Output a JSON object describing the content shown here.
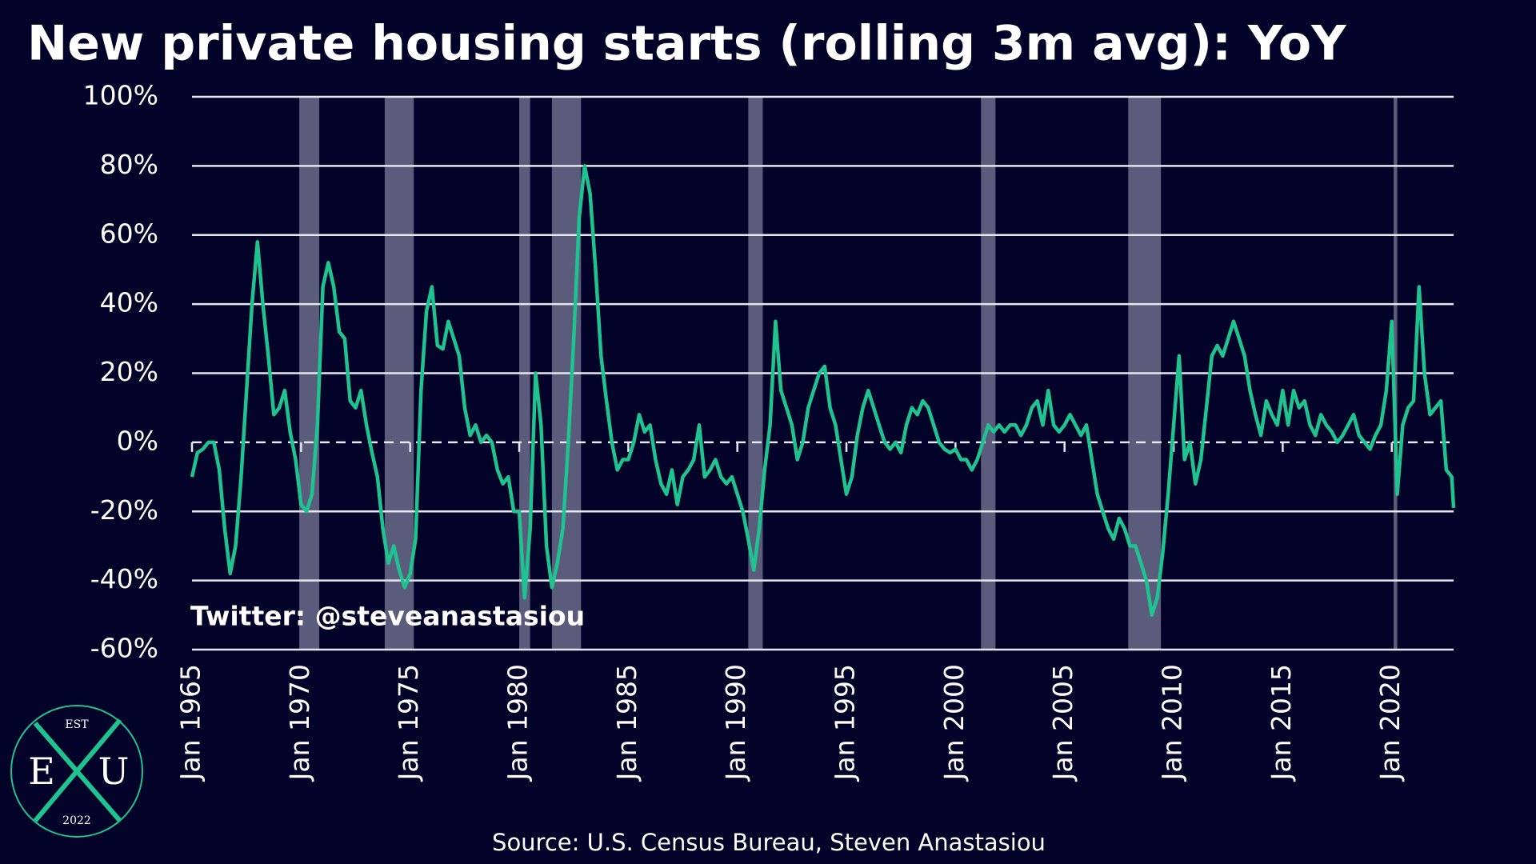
{
  "chart_data": {
    "type": "line",
    "title": "New private housing starts (rolling 3m avg): YoY",
    "source": "Source: U.S. Census Bureau, Steven Anastasiou",
    "annotation": "Twitter: @steveanastasiou",
    "logo": {
      "top": "EST",
      "left": "E",
      "right": "U",
      "bottom": "2022"
    },
    "x": [
      "Jan 1965",
      "Apr 1965",
      "Jul 1965",
      "Oct 1965",
      "Jan 1966",
      "Apr 1966",
      "Jul 1966",
      "Oct 1966",
      "Jan 1967",
      "Apr 1967",
      "Jul 1967",
      "Oct 1967",
      "Jan 1968",
      "Apr 1968",
      "Jul 1968",
      "Oct 1968",
      "Jan 1969",
      "Apr 1969",
      "Jul 1969",
      "Oct 1969",
      "Jan 1970",
      "Apr 1970",
      "Jul 1970",
      "Oct 1970",
      "Jan 1971",
      "Apr 1971",
      "Jul 1971",
      "Oct 1971",
      "Jan 1972",
      "Apr 1972",
      "Jul 1972",
      "Oct 1972",
      "Jan 1973",
      "Apr 1973",
      "Jul 1973",
      "Oct 1973",
      "Jan 1974",
      "Apr 1974",
      "Jul 1974",
      "Oct 1974",
      "Jan 1975",
      "Apr 1975",
      "Jul 1975",
      "Oct 1975",
      "Jan 1976",
      "Apr 1976",
      "Jul 1976",
      "Oct 1976",
      "Jan 1977",
      "Apr 1977",
      "Jul 1977",
      "Oct 1977",
      "Jan 1978",
      "Apr 1978",
      "Jul 1978",
      "Oct 1978",
      "Jan 1979",
      "Apr 1979",
      "Jul 1979",
      "Oct 1979",
      "Jan 1980",
      "Apr 1980",
      "Jul 1980",
      "Oct 1980",
      "Jan 1981",
      "Apr 1981",
      "Jul 1981",
      "Oct 1981",
      "Jan 1982",
      "Apr 1982",
      "Jul 1982",
      "Oct 1982",
      "Jan 1983",
      "Apr 1983",
      "Jul 1983",
      "Oct 1983",
      "Jan 1984",
      "Apr 1984",
      "Jul 1984",
      "Oct 1984",
      "Jan 1985",
      "Apr 1985",
      "Jul 1985",
      "Oct 1985",
      "Jan 1986",
      "Apr 1986",
      "Jul 1986",
      "Oct 1986",
      "Jan 1987",
      "Apr 1987",
      "Jul 1987",
      "Oct 1987",
      "Jan 1988",
      "Apr 1988",
      "Jul 1988",
      "Oct 1988",
      "Jan 1989",
      "Apr 1989",
      "Jul 1989",
      "Oct 1989",
      "Jan 1990",
      "Apr 1990",
      "Jul 1990",
      "Oct 1990",
      "Jan 1991",
      "Apr 1991",
      "Jul 1991",
      "Oct 1991",
      "Jan 1992",
      "Apr 1992",
      "Jul 1992",
      "Oct 1992",
      "Jan 1993",
      "Apr 1993",
      "Jul 1993",
      "Oct 1993",
      "Jan 1994",
      "Apr 1994",
      "Jul 1994",
      "Oct 1994",
      "Jan 1995",
      "Apr 1995",
      "Jul 1995",
      "Oct 1995",
      "Jan 1996",
      "Apr 1996",
      "Jul 1996",
      "Oct 1996",
      "Jan 1997",
      "Apr 1997",
      "Jul 1997",
      "Oct 1997",
      "Jan 1998",
      "Apr 1998",
      "Jul 1998",
      "Oct 1998",
      "Jan 1999",
      "Apr 1999",
      "Jul 1999",
      "Oct 1999",
      "Jan 2000",
      "Apr 2000",
      "Jul 2000",
      "Oct 2000",
      "Jan 2001",
      "Apr 2001",
      "Jul 2001",
      "Oct 2001",
      "Jan 2002",
      "Apr 2002",
      "Jul 2002",
      "Oct 2002",
      "Jan 2003",
      "Apr 2003",
      "Jul 2003",
      "Oct 2003",
      "Jan 2004",
      "Apr 2004",
      "Jul 2004",
      "Oct 2004",
      "Jan 2005",
      "Apr 2005",
      "Jul 2005",
      "Oct 2005",
      "Jan 2006",
      "Apr 2006",
      "Jul 2006",
      "Oct 2006",
      "Jan 2007",
      "Apr 2007",
      "Jul 2007",
      "Oct 2007",
      "Jan 2008",
      "Apr 2008",
      "Jul 2008",
      "Oct 2008",
      "Jan 2009",
      "Apr 2009",
      "Jul 2009",
      "Oct 2009",
      "Jan 2010",
      "Apr 2010",
      "Jul 2010",
      "Oct 2010",
      "Jan 2011",
      "Apr 2011",
      "Jul 2011",
      "Oct 2011",
      "Jan 2012",
      "Apr 2012",
      "Jul 2012",
      "Oct 2012",
      "Jan 2013",
      "Apr 2013",
      "Jul 2013",
      "Oct 2013",
      "Jan 2014",
      "Apr 2014",
      "Jul 2014",
      "Oct 2014",
      "Jan 2015",
      "Apr 2015",
      "Jul 2015",
      "Oct 2015",
      "Jan 2016",
      "Apr 2016",
      "Jul 2016",
      "Oct 2016",
      "Jan 2017",
      "Apr 2017",
      "Jul 2017",
      "Oct 2017",
      "Jan 2018",
      "Apr 2018",
      "Jul 2018",
      "Oct 2018",
      "Jan 2019",
      "Apr 2019",
      "Jul 2019",
      "Oct 2019",
      "Jan 2020",
      "Apr 2020",
      "Jul 2020",
      "Oct 2020",
      "Jan 2021",
      "Apr 2021",
      "Jul 2021",
      "Oct 2021",
      "Jan 2022",
      "Apr 2022",
      "Jul 2022",
      "Oct 2022",
      "Nov 2022"
    ],
    "series": [
      {
        "color": "#1fc38f",
        "values": [
          -10,
          -3,
          -2,
          0,
          0,
          -8,
          -25,
          -38,
          -30,
          -10,
          15,
          40,
          58,
          40,
          25,
          8,
          10,
          15,
          3,
          -5,
          -18,
          -20,
          -15,
          5,
          45,
          52,
          45,
          32,
          30,
          12,
          10,
          15,
          5,
          -3,
          -10,
          -25,
          -35,
          -30,
          -37,
          -42,
          -38,
          -28,
          15,
          38,
          45,
          28,
          27,
          35,
          30,
          25,
          10,
          2,
          5,
          0,
          2,
          0,
          -8,
          -12,
          -10,
          -20,
          -20,
          -45,
          -25,
          20,
          5,
          -30,
          -42,
          -35,
          -25,
          0,
          30,
          65,
          80,
          72,
          50,
          25,
          12,
          0,
          -8,
          -5,
          -5,
          0,
          8,
          3,
          5,
          -5,
          -12,
          -15,
          -8,
          -18,
          -10,
          -8,
          -5,
          5,
          -10,
          -8,
          -5,
          -10,
          -12,
          -10,
          -15,
          -20,
          -28,
          -37,
          -25,
          -8,
          5,
          35,
          15,
          10,
          5,
          -5,
          0,
          10,
          15,
          20,
          22,
          10,
          5,
          -5,
          -15,
          -10,
          2,
          10,
          15,
          10,
          5,
          0,
          -2,
          0,
          -3,
          5,
          10,
          8,
          12,
          10,
          5,
          0,
          -2,
          -3,
          -2,
          -5,
          -5,
          -8,
          -5,
          0,
          5,
          3,
          5,
          3,
          5,
          5,
          2,
          5,
          10,
          12,
          5,
          15,
          5,
          3,
          5,
          8,
          5,
          2,
          5,
          -5,
          -15,
          -20,
          -25,
          -28,
          -22,
          -25,
          -30,
          -30,
          -35,
          -40,
          -50,
          -45,
          -32,
          -15,
          5,
          25,
          -5,
          0,
          -12,
          -5,
          10,
          25,
          28,
          25,
          30,
          35,
          30,
          25,
          15,
          8,
          2,
          12,
          8,
          5,
          15,
          5,
          15,
          10,
          12,
          5,
          2,
          8,
          5,
          3,
          0,
          2,
          5,
          8,
          2,
          0,
          -2,
          2,
          5,
          15,
          35,
          -15,
          5,
          10,
          12,
          45,
          20,
          8,
          10,
          12,
          -8,
          -10,
          -19
        ]
      }
    ],
    "recessions": [
      {
        "start": "Dec 1969",
        "end": "Nov 1970"
      },
      {
        "start": "Nov 1973",
        "end": "Mar 1975"
      },
      {
        "start": "Jan 1980",
        "end": "Jul 1980"
      },
      {
        "start": "Jul 1981",
        "end": "Nov 1982"
      },
      {
        "start": "Jul 1990",
        "end": "Mar 1991"
      },
      {
        "start": "Mar 2001",
        "end": "Nov 2001"
      },
      {
        "start": "Dec 2007",
        "end": "Jun 2009"
      },
      {
        "start": "Feb 2020",
        "end": "Apr 2020"
      }
    ],
    "xlim": [
      "Jan 1965",
      "Nov 2022"
    ],
    "xticks": [
      "Jan 1965",
      "Jan 1970",
      "Jan 1975",
      "Jan 1980",
      "Jan 1985",
      "Jan 1990",
      "Jan 1995",
      "Jan 2000",
      "Jan 2005",
      "Jan 2010",
      "Jan 2015",
      "Jan 2020"
    ],
    "ylim": [
      -60,
      100
    ],
    "yticks": [
      {
        "value": -60,
        "label": "-60%"
      },
      {
        "value": -40,
        "label": "-40%"
      },
      {
        "value": -20,
        "label": "-20%"
      },
      {
        "value": 0,
        "label": "0%"
      },
      {
        "value": 20,
        "label": "20%"
      },
      {
        "value": 40,
        "label": "40%"
      },
      {
        "value": 60,
        "label": "60%"
      },
      {
        "value": 80,
        "label": "80%"
      },
      {
        "value": 100,
        "label": "100%"
      }
    ],
    "dashed_line": 0,
    "grid": true
  }
}
